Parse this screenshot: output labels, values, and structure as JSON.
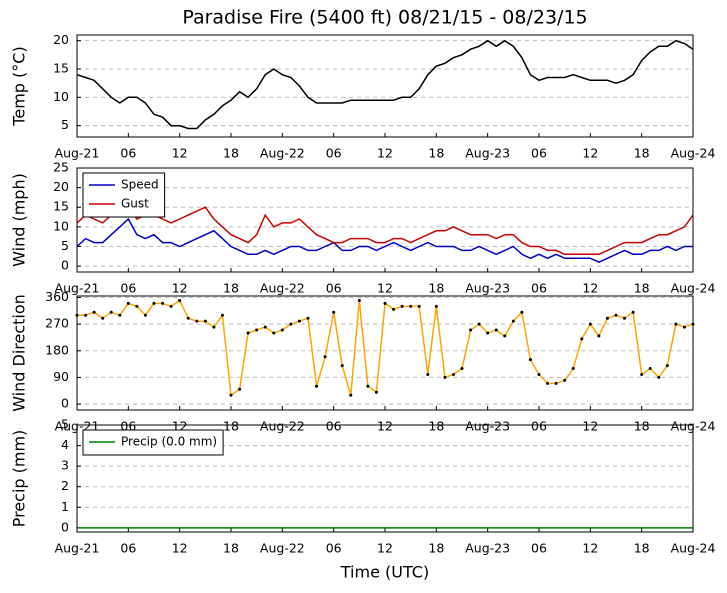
{
  "chart_data": [
    {
      "type": "line",
      "title": "Paradise Fire (5400 ft) 08/21/15 - 08/23/15",
      "ylabel": "Temp (°C)",
      "x": [
        0,
        1,
        2,
        3,
        4,
        5,
        6,
        7,
        8,
        9,
        10,
        11,
        12,
        13,
        14,
        15,
        16,
        17,
        18,
        19,
        20,
        21,
        22,
        23,
        24,
        25,
        26,
        27,
        28,
        29,
        30,
        31,
        32,
        33,
        34,
        35,
        36,
        37,
        38,
        39,
        40,
        41,
        42,
        43,
        44,
        45,
        46,
        47,
        48,
        49,
        50,
        51,
        52,
        53,
        54,
        55,
        56,
        57,
        58,
        59,
        60,
        61,
        62,
        63,
        64,
        65,
        66,
        67,
        68,
        69,
        70,
        71,
        72
      ],
      "xlim": [
        0,
        72
      ],
      "xticks": [
        {
          "value": 0,
          "label": "Aug-21"
        },
        {
          "value": 6,
          "label": "06"
        },
        {
          "value": 12,
          "label": "12"
        },
        {
          "value": 18,
          "label": "18"
        },
        {
          "value": 24,
          "label": "Aug-22"
        },
        {
          "value": 30,
          "label": "06"
        },
        {
          "value": 36,
          "label": "12"
        },
        {
          "value": 42,
          "label": "18"
        },
        {
          "value": 48,
          "label": "Aug-23"
        },
        {
          "value": 54,
          "label": "06"
        },
        {
          "value": 60,
          "label": "12"
        },
        {
          "value": 66,
          "label": "18"
        },
        {
          "value": 72,
          "label": "Aug-24"
        }
      ],
      "ylim": [
        3,
        21
      ],
      "yticks": [
        5,
        10,
        15,
        20
      ],
      "grid": true,
      "series": [
        {
          "color": "#000000",
          "values": [
            14,
            13.5,
            13,
            11.5,
            10,
            9,
            10,
            10,
            9,
            7,
            6.5,
            5,
            5,
            4.5,
            4.5,
            6,
            7,
            8.5,
            9.5,
            11,
            10,
            11.5,
            14,
            15,
            14,
            13.5,
            12,
            10,
            9,
            9,
            9,
            9,
            9.5,
            9.5,
            9.5,
            9.5,
            9.5,
            9.5,
            10,
            10,
            11.5,
            14,
            15.5,
            16,
            17,
            17.5,
            18.5,
            19,
            20,
            19,
            20,
            19,
            17,
            14,
            13,
            13.5,
            13.5,
            13.5,
            14,
            13.5,
            13,
            13,
            13,
            12.5,
            13,
            14,
            16.5,
            18,
            19,
            19,
            20,
            19.5,
            18.5
          ]
        }
      ]
    },
    {
      "type": "line",
      "ylabel": "Wind (mph)",
      "x": [
        0,
        1,
        2,
        3,
        4,
        5,
        6,
        7,
        8,
        9,
        10,
        11,
        12,
        13,
        14,
        15,
        16,
        17,
        18,
        19,
        20,
        21,
        22,
        23,
        24,
        25,
        26,
        27,
        28,
        29,
        30,
        31,
        32,
        33,
        34,
        35,
        36,
        37,
        38,
        39,
        40,
        41,
        42,
        43,
        44,
        45,
        46,
        47,
        48,
        49,
        50,
        51,
        52,
        53,
        54,
        55,
        56,
        57,
        58,
        59,
        60,
        61,
        62,
        63,
        64,
        65,
        66,
        67,
        68,
        69,
        70,
        71,
        72
      ],
      "xlim": [
        0,
        72
      ],
      "xticks": [
        {
          "value": 0,
          "label": "Aug-21"
        },
        {
          "value": 6,
          "label": "06"
        },
        {
          "value": 12,
          "label": "12"
        },
        {
          "value": 18,
          "label": "18"
        },
        {
          "value": 24,
          "label": "Aug-22"
        },
        {
          "value": 30,
          "label": "06"
        },
        {
          "value": 36,
          "label": "12"
        },
        {
          "value": 42,
          "label": "18"
        },
        {
          "value": 48,
          "label": "Aug-23"
        },
        {
          "value": 54,
          "label": "06"
        },
        {
          "value": 60,
          "label": "12"
        },
        {
          "value": 66,
          "label": "18"
        },
        {
          "value": 72,
          "label": "Aug-24"
        }
      ],
      "ylim": [
        -1.5,
        25
      ],
      "yticks": [
        0,
        5,
        10,
        15,
        20,
        25
      ],
      "grid": true,
      "legend": "upper left",
      "series": [
        {
          "name": "Speed",
          "color": "#0000cc",
          "values": [
            5,
            7,
            6,
            6,
            8,
            10,
            12,
            8,
            7,
            8,
            6,
            6,
            5,
            6,
            7,
            8,
            9,
            7,
            5,
            4,
            3,
            3,
            4,
            3,
            4,
            5,
            5,
            4,
            4,
            5,
            6,
            4,
            4,
            5,
            5,
            4,
            5,
            6,
            5,
            4,
            5,
            6,
            5,
            5,
            5,
            4,
            4,
            5,
            4,
            3,
            4,
            5,
            3,
            2,
            3,
            2,
            3,
            2,
            2,
            2,
            2,
            1,
            2,
            3,
            4,
            3,
            3,
            4,
            4,
            5,
            4,
            5,
            5
          ]
        },
        {
          "name": "Gust",
          "color": "#cc0000",
          "values": [
            11,
            13,
            12,
            11,
            13,
            14,
            15,
            12,
            13,
            13,
            12,
            11,
            12,
            13,
            14,
            15,
            12,
            10,
            8,
            7,
            6,
            8,
            13,
            10,
            11,
            11,
            12,
            10,
            8,
            7,
            6,
            6,
            7,
            7,
            7,
            6,
            6,
            7,
            7,
            6,
            7,
            8,
            9,
            9,
            10,
            9,
            8,
            8,
            8,
            7,
            8,
            8,
            6,
            5,
            5,
            4,
            4,
            3,
            3,
            3,
            3,
            3,
            4,
            5,
            6,
            6,
            6,
            7,
            8,
            8,
            9,
            10,
            13
          ]
        }
      ]
    },
    {
      "type": "line",
      "ylabel": "Wind Direction",
      "x": [
        0,
        1,
        2,
        3,
        4,
        5,
        6,
        7,
        8,
        9,
        10,
        11,
        12,
        13,
        14,
        15,
        16,
        17,
        18,
        19,
        20,
        21,
        22,
        23,
        24,
        25,
        26,
        27,
        28,
        29,
        30,
        31,
        32,
        33,
        34,
        35,
        36,
        37,
        38,
        39,
        40,
        41,
        42,
        43,
        44,
        45,
        46,
        47,
        48,
        49,
        50,
        51,
        52,
        53,
        54,
        55,
        56,
        57,
        58,
        59,
        60,
        61,
        62,
        63,
        64,
        65,
        66,
        67,
        68,
        69,
        70,
        71,
        72
      ],
      "xlim": [
        0,
        72
      ],
      "xticks": [
        {
          "value": 0,
          "label": "Aug-21"
        },
        {
          "value": 6,
          "label": "06"
        },
        {
          "value": 12,
          "label": "12"
        },
        {
          "value": 18,
          "label": "18"
        },
        {
          "value": 24,
          "label": "Aug-22"
        },
        {
          "value": 30,
          "label": "06"
        },
        {
          "value": 36,
          "label": "12"
        },
        {
          "value": 42,
          "label": "18"
        },
        {
          "value": 48,
          "label": "Aug-23"
        },
        {
          "value": 54,
          "label": "06"
        },
        {
          "value": 60,
          "label": "12"
        },
        {
          "value": 66,
          "label": "18"
        },
        {
          "value": 72,
          "label": "Aug-24"
        }
      ],
      "ylim": [
        -20,
        365
      ],
      "yticks": [
        0,
        90,
        180,
        270,
        360
      ],
      "grid": true,
      "markers": true,
      "series": [
        {
          "color": "#ffa500",
          "values": [
            300,
            300,
            310,
            290,
            310,
            300,
            340,
            330,
            300,
            340,
            340,
            330,
            350,
            290,
            280,
            280,
            260,
            300,
            30,
            50,
            240,
            250,
            260,
            240,
            250,
            270,
            280,
            290,
            60,
            160,
            310,
            130,
            30,
            350,
            60,
            40,
            340,
            320,
            330,
            330,
            330,
            100,
            330,
            90,
            100,
            120,
            250,
            270,
            240,
            250,
            230,
            280,
            310,
            150,
            100,
            70,
            70,
            80,
            120,
            220,
            270,
            230,
            290,
            300,
            290,
            310,
            100,
            120,
            90,
            130,
            270,
            260,
            270
          ]
        }
      ]
    },
    {
      "type": "line",
      "ylabel": "Precip (mm)",
      "xlabel": "Time (UTC)",
      "x": [
        0,
        1,
        2,
        3,
        4,
        5,
        6,
        7,
        8,
        9,
        10,
        11,
        12,
        13,
        14,
        15,
        16,
        17,
        18,
        19,
        20,
        21,
        22,
        23,
        24,
        25,
        26,
        27,
        28,
        29,
        30,
        31,
        32,
        33,
        34,
        35,
        36,
        37,
        38,
        39,
        40,
        41,
        42,
        43,
        44,
        45,
        46,
        47,
        48,
        49,
        50,
        51,
        52,
        53,
        54,
        55,
        56,
        57,
        58,
        59,
        60,
        61,
        62,
        63,
        64,
        65,
        66,
        67,
        68,
        69,
        70,
        71,
        72
      ],
      "xlim": [
        0,
        72
      ],
      "xticks": [
        {
          "value": 0,
          "label": "Aug-21"
        },
        {
          "value": 6,
          "label": "06"
        },
        {
          "value": 12,
          "label": "12"
        },
        {
          "value": 18,
          "label": "18"
        },
        {
          "value": 24,
          "label": "Aug-22"
        },
        {
          "value": 30,
          "label": "06"
        },
        {
          "value": 36,
          "label": "12"
        },
        {
          "value": 42,
          "label": "18"
        },
        {
          "value": 48,
          "label": "Aug-23"
        },
        {
          "value": 54,
          "label": "06"
        },
        {
          "value": 60,
          "label": "12"
        },
        {
          "value": 66,
          "label": "18"
        },
        {
          "value": 72,
          "label": "Aug-24"
        }
      ],
      "ylim": [
        -0.2,
        5
      ],
      "yticks": [
        0,
        1,
        2,
        3,
        4,
        5
      ],
      "grid": true,
      "legend": "upper left",
      "series": [
        {
          "name": "Precip (0.0 mm)",
          "color": "#008000",
          "values": [
            0,
            0,
            0,
            0,
            0,
            0,
            0,
            0,
            0,
            0,
            0,
            0,
            0,
            0,
            0,
            0,
            0,
            0,
            0,
            0,
            0,
            0,
            0,
            0,
            0,
            0,
            0,
            0,
            0,
            0,
            0,
            0,
            0,
            0,
            0,
            0,
            0,
            0,
            0,
            0,
            0,
            0,
            0,
            0,
            0,
            0,
            0,
            0,
            0,
            0,
            0,
            0,
            0,
            0,
            0,
            0,
            0,
            0,
            0,
            0,
            0,
            0,
            0,
            0,
            0,
            0,
            0,
            0,
            0,
            0,
            0,
            0,
            0
          ]
        }
      ]
    }
  ]
}
